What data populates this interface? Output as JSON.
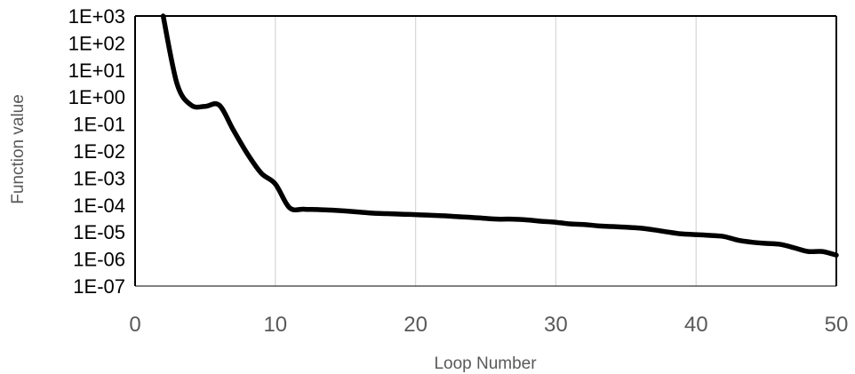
{
  "chart_data": {
    "type": "line",
    "title": "",
    "xlabel": "Loop Number",
    "ylabel": "Function value",
    "xlim": [
      0,
      50
    ],
    "ylim": [
      1e-07,
      1000
    ],
    "yscale": "log",
    "grid": "vertical",
    "legend": "none",
    "xticks": [
      "0",
      "10",
      "20",
      "30",
      "40",
      "50"
    ],
    "yticks": [
      "1E+03",
      "1E+02",
      "1E+01",
      "1E+00",
      "1E-01",
      "1E-02",
      "1E-03",
      "1E-04",
      "1E-05",
      "1E-06",
      "1E-07"
    ],
    "series": [
      {
        "color": "#000000",
        "x": [
          2,
          3,
          4,
          5,
          6,
          7,
          8,
          9,
          10,
          11,
          12,
          13,
          14,
          15,
          16,
          17,
          18,
          19,
          20,
          21,
          22,
          23,
          24,
          25,
          26,
          27,
          28,
          29,
          30,
          31,
          32,
          33,
          34,
          35,
          36,
          37,
          38,
          39,
          40,
          41,
          42,
          43,
          44,
          45,
          46,
          47,
          48,
          49,
          50
        ],
        "y": [
          1000,
          3,
          0.5,
          0.45,
          0.5,
          0.06,
          0.008,
          0.0015,
          0.0006,
          8e-05,
          7e-05,
          6.8e-05,
          6.5e-05,
          6e-05,
          5.5e-05,
          5e-05,
          4.8e-05,
          4.6e-05,
          4.4e-05,
          4.2e-05,
          4e-05,
          3.7e-05,
          3.5e-05,
          3.2e-05,
          3e-05,
          3e-05,
          2.8e-05,
          2.5e-05,
          2.3e-05,
          2e-05,
          1.9e-05,
          1.7e-05,
          1.6e-05,
          1.5e-05,
          1.4e-05,
          1.2e-05,
          1e-05,
          8.5e-06,
          8e-06,
          7.5e-06,
          6.8e-06,
          5e-06,
          4.2e-06,
          3.8e-06,
          3.5e-06,
          2.6e-06,
          1.9e-06,
          1.9e-06,
          1.4e-06
        ]
      }
    ]
  }
}
